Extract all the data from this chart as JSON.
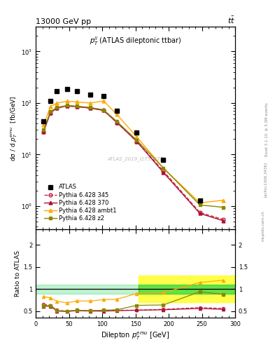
{
  "title_top": "13000 GeV pp",
  "title_top_right": "$t\\bar{t}$",
  "inner_title": "$p_T^{ll}$ (ATLAS dileptonic ttbar)",
  "watermark": "ATLAS_2019_I1759875",
  "rivet_label": "Rivet 3.1.10, ≥ 3.3M events",
  "arxiv_label": "[arXiv:1306.3436]",
  "mcplots_label": "mcplots.cern.ch",
  "ylabel_main": "dσ / d $p_T^{emu}$  [fb/GeV]",
  "ylabel_ratio": "Ratio to ATLAS",
  "xlabel": "Dilepton $p_T^{emu}$ [GeV]",
  "xlim": [
    0,
    300
  ],
  "ylim_main": [
    0.35,
    3000
  ],
  "ylim_ratio": [
    0.35,
    2.35
  ],
  "ratio_yticks": [
    0.5,
    1.0,
    1.5,
    2.0
  ],
  "atlas_x": [
    12,
    22,
    32,
    47,
    62,
    82,
    102,
    122,
    152,
    192,
    247
  ],
  "atlas_y": [
    44,
    110,
    170,
    185,
    170,
    145,
    135,
    70,
    27,
    8.0,
    1.3
  ],
  "py345_x": [
    12,
    22,
    32,
    47,
    62,
    82,
    102,
    122,
    152,
    192,
    247,
    282
  ],
  "py345_y": [
    28,
    65,
    80,
    88,
    85,
    80,
    72,
    42,
    18,
    4.8,
    0.75,
    0.55
  ],
  "py370_x": [
    12,
    22,
    32,
    47,
    62,
    82,
    102,
    122,
    152,
    192,
    247,
    282
  ],
  "py370_y": [
    28,
    65,
    80,
    88,
    85,
    80,
    72,
    42,
    18,
    4.5,
    0.72,
    0.52
  ],
  "pyambt1_x": [
    12,
    22,
    32,
    47,
    62,
    82,
    102,
    122,
    152,
    192,
    247,
    282
  ],
  "pyambt1_y": [
    38,
    85,
    100,
    108,
    105,
    100,
    110,
    60,
    22,
    5.5,
    1.15,
    1.3
  ],
  "pyz2_x": [
    12,
    22,
    32,
    47,
    62,
    82,
    102,
    122,
    152,
    192,
    247,
    282
  ],
  "pyz2_y": [
    30,
    68,
    82,
    90,
    87,
    82,
    74,
    44,
    19,
    5.5,
    1.05,
    0.95
  ],
  "ratio_py345_x": [
    12,
    22,
    32,
    47,
    62,
    82,
    102,
    122,
    152,
    192,
    247,
    282
  ],
  "ratio_py345_y": [
    0.65,
    0.63,
    0.52,
    0.5,
    0.52,
    0.51,
    0.51,
    0.52,
    0.52,
    0.54,
    0.58,
    0.56
  ],
  "ratio_py370_x": [
    12,
    22,
    32,
    47,
    62,
    82,
    102,
    122,
    152,
    192,
    247,
    282
  ],
  "ratio_py370_y": [
    0.61,
    0.61,
    0.5,
    0.49,
    0.51,
    0.5,
    0.5,
    0.51,
    0.52,
    0.53,
    0.56,
    0.54
  ],
  "ratio_pyambt1_x": [
    12,
    22,
    32,
    47,
    62,
    82,
    102,
    122,
    152,
    192,
    247,
    282
  ],
  "ratio_pyambt1_y": [
    0.83,
    0.8,
    0.72,
    0.69,
    0.73,
    0.73,
    0.76,
    0.77,
    0.9,
    0.92,
    1.15,
    1.2
  ],
  "ratio_pyz2_x": [
    12,
    22,
    32,
    47,
    62,
    82,
    102,
    122,
    152,
    192,
    247,
    282
  ],
  "ratio_pyz2_y": [
    0.63,
    0.62,
    0.51,
    0.5,
    0.52,
    0.51,
    0.52,
    0.53,
    0.63,
    0.64,
    0.94,
    0.88
  ],
  "band_yellow_xlo": 155,
  "band_yellow_xhi": 300,
  "band_yellow_ylo": 0.7,
  "band_yellow_yhi": 1.3,
  "band_green_xlo": 155,
  "band_green_xhi": 300,
  "band_green_ylo": 0.9,
  "band_green_yhi": 1.1,
  "color_atlas": "#000000",
  "color_py345": "#cc2244",
  "color_py370": "#aa1133",
  "color_pyambt1": "#ffaa00",
  "color_pyz2": "#888800",
  "legend_entries": [
    "ATLAS",
    "Pythia 6.428 345",
    "Pythia 6.428 370",
    "Pythia 6.428 ambt1",
    "Pythia 6.428 z2"
  ],
  "background_color": "#ffffff"
}
